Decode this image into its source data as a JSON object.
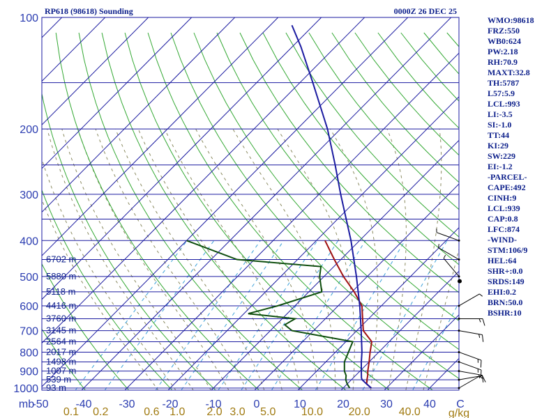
{
  "chart_data": {
    "type": "line",
    "title": "RP618 (98618) Sounding",
    "valid_time": "0000Z 26 DEC 25",
    "pressure_ticks": [
      100,
      200,
      300,
      400,
      500,
      600,
      700,
      800,
      900,
      1000
    ],
    "temperature_ticks": [
      "-50",
      "-40",
      "-30",
      "-20",
      "-10",
      "0",
      "10",
      "20",
      "30",
      "40"
    ],
    "mixing_ratio_ticks": [
      "0.1",
      "0.2",
      "0.6",
      "1.0",
      "2.0",
      "3.0",
      "5.0",
      "10.0",
      "20.0",
      "40.0"
    ],
    "mixing_ratio_unit": "g/kg",
    "pressure_unit": "mb",
    "temperature_unit": "C",
    "height_labels": [
      {
        "p": 450,
        "text": "6702 m"
      },
      {
        "p": 500,
        "text": "5880 m"
      },
      {
        "p": 550,
        "text": "5118 m"
      },
      {
        "p": 600,
        "text": "4416 m"
      },
      {
        "p": 650,
        "text": "3760 m"
      },
      {
        "p": 700,
        "text": "3145 m"
      },
      {
        "p": 750,
        "text": "2564 m"
      },
      {
        "p": 800,
        "text": "2017 m"
      },
      {
        "p": 850,
        "text": "1498 m"
      },
      {
        "p": 900,
        "text": "1007 m"
      },
      {
        "p": 950,
        "text": "539 m"
      },
      {
        "p": 1000,
        "text": "93 m"
      }
    ],
    "series": [
      {
        "name": "temperature",
        "color": "#a01010",
        "points": [
          [
            1000,
            26.5
          ],
          [
            975,
            24.5
          ],
          [
            950,
            23.6
          ],
          [
            925,
            22.8
          ],
          [
            900,
            21.8
          ],
          [
            850,
            20.0
          ],
          [
            800,
            18.0
          ],
          [
            750,
            16.0
          ],
          [
            700,
            11.5
          ],
          [
            650,
            8.6
          ],
          [
            600,
            5.5
          ],
          [
            550,
            0.5
          ],
          [
            500,
            -5.5
          ],
          [
            450,
            -11.5
          ],
          [
            400,
            -18.0
          ]
        ]
      },
      {
        "name": "dewpoint",
        "color": "#0d4d0d",
        "points": [
          [
            1000,
            21.5
          ],
          [
            975,
            20.0
          ],
          [
            950,
            18.7
          ],
          [
            925,
            17.8
          ],
          [
            900,
            16.4
          ],
          [
            850,
            14.3
          ],
          [
            800,
            13.0
          ],
          [
            750,
            11.6
          ],
          [
            700,
            -5.0
          ],
          [
            675,
            -8.0
          ],
          [
            650,
            -7.0
          ],
          [
            630,
            -19.0
          ],
          [
            600,
            -14.0
          ],
          [
            550,
            -7.0
          ],
          [
            500,
            -11.0
          ],
          [
            470,
            -13.0
          ],
          [
            450,
            -34.0
          ],
          [
            400,
            -50.0
          ]
        ]
      },
      {
        "name": "parcel",
        "color": "#1a1aa0",
        "points": [
          [
            1000,
            26.5
          ],
          [
            975,
            24.5
          ],
          [
            950,
            22.5
          ],
          [
            939,
            21.9
          ],
          [
            900,
            20.3
          ],
          [
            850,
            18.2
          ],
          [
            800,
            16.1
          ],
          [
            700,
            11.0
          ],
          [
            600,
            5.0
          ],
          [
            500,
            -2.5
          ],
          [
            400,
            -12.0
          ],
          [
            300,
            -25.0
          ],
          [
            250,
            -33.0
          ],
          [
            200,
            -43.0
          ],
          [
            150,
            -57.0
          ],
          [
            120,
            -68.0
          ],
          [
            105,
            -75.0
          ]
        ]
      }
    ],
    "wind_barbs": [
      {
        "p": 1000,
        "dir": 60,
        "speed": 5
      },
      {
        "p": 950,
        "dir": 80,
        "speed": 10
      },
      {
        "p": 900,
        "dir": 100,
        "speed": 15
      },
      {
        "p": 850,
        "dir": 110,
        "speed": 15
      },
      {
        "p": 800,
        "dir": 110,
        "speed": 15
      },
      {
        "p": 700,
        "dir": 100,
        "speed": 15
      },
      {
        "p": 650,
        "dir": 90,
        "speed": 15
      },
      {
        "p": 600,
        "dir": 60,
        "speed": 5
      },
      {
        "p": 500,
        "dir": 320,
        "speed": 5
      },
      {
        "p": 450,
        "dir": 300,
        "speed": 5
      },
      {
        "p": 400,
        "dir": 290,
        "speed": 5
      }
    ]
  },
  "indices": [
    "WMO:98618",
    "FRZ:550",
    "WB0:624",
    "PW:2.18",
    "RH:70.9",
    "MAXT:32.8",
    "TH:5787",
    "L57:5.9",
    "LCL:993",
    "LI:-3.5",
    "SI:-1.0",
    "TT:44",
    "KI:29",
    "SW:229",
    "EI:-1.2",
    "-PARCEL-",
    "CAPE:492",
    "CINH:9",
    "LCL:939",
    "CAP:0.8",
    "LFC:874",
    "-WIND-",
    "STM:106/9",
    "HEL:64",
    "SHR+:0.0",
    "SRDS:149",
    "EHI:0.2",
    "BRN:50.0",
    "BSHR:10"
  ],
  "colors": {
    "isobar": "#1a1aa0",
    "isotherm": "#1a1aa0",
    "dry_adiabat": "#33a833",
    "moist_adiabat": "#8a8a60",
    "mixing_ratio": "#3aa0d8",
    "text": "#0b1e8a"
  }
}
